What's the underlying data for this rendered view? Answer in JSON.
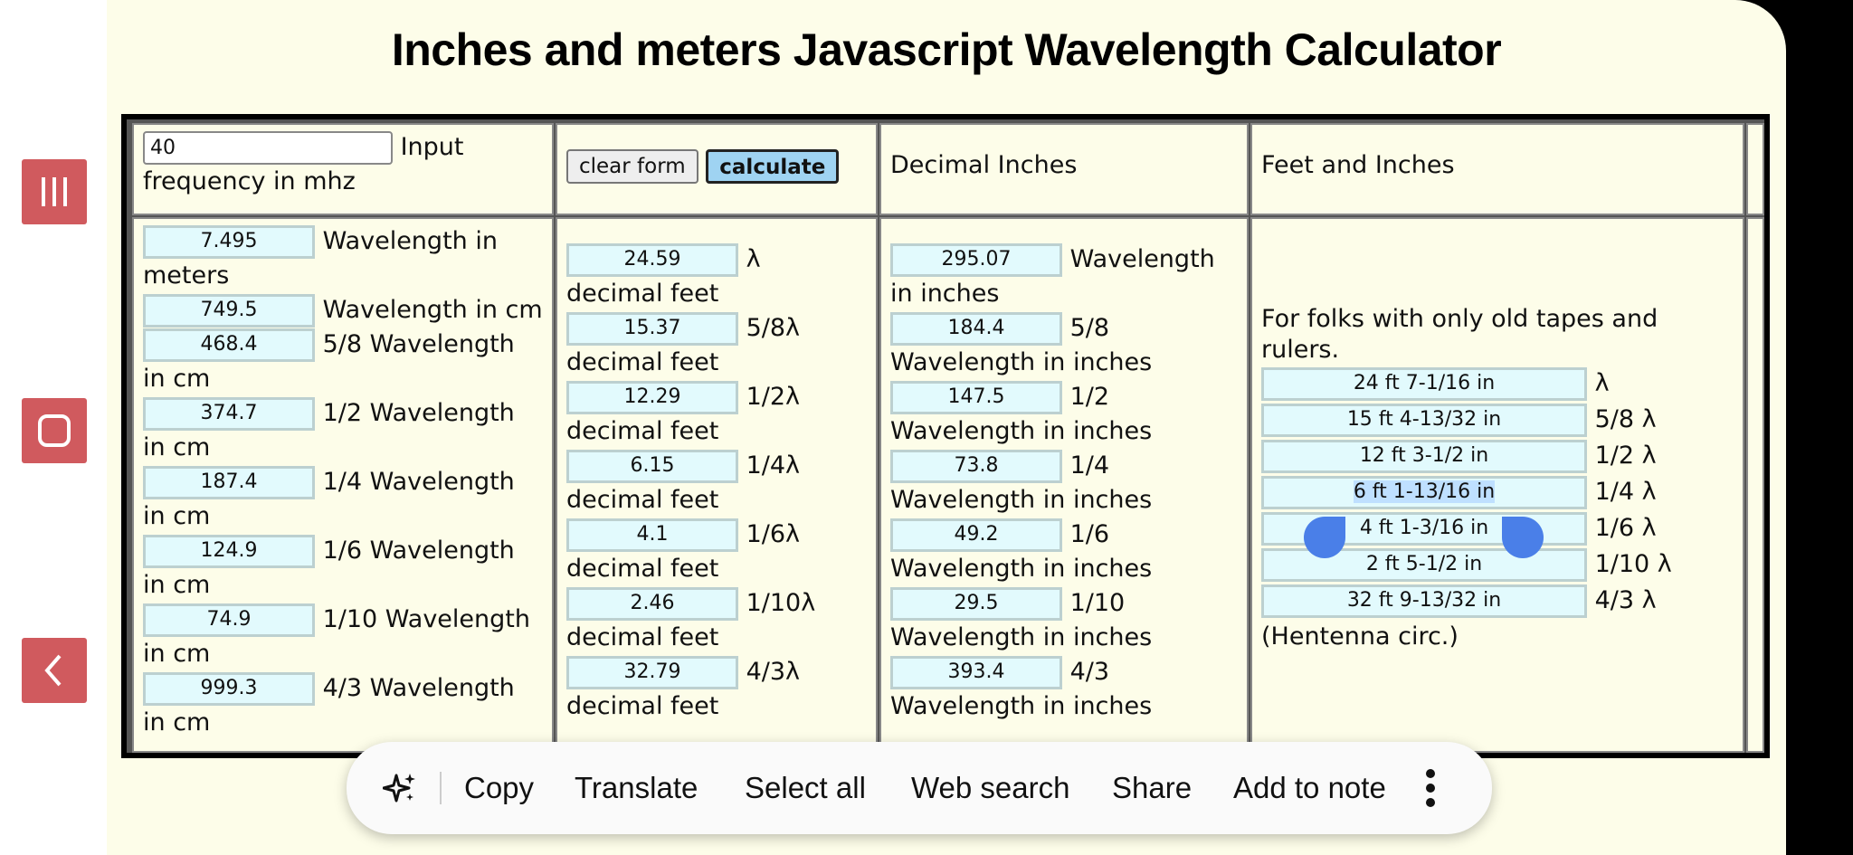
{
  "title": "Inches and meters Javascript Wavelength Calculator",
  "input": {
    "value": "40",
    "label_after": "Input",
    "label_below": "frequency in mhz"
  },
  "buttons": {
    "clear": "clear form",
    "calculate": "calculate"
  },
  "headers": {
    "decimal_inches": "Decimal Inches",
    "feet_inches": "Feet and Inches"
  },
  "col_cm": {
    "wavelength_m_value": "7.495",
    "wavelength_m_label1": "Wavelength in",
    "wavelength_m_label2": "meters",
    "wavelength_cm_value": "749.5",
    "wavelength_cm_label": "Wavelength in cm",
    "rows": [
      {
        "value": "468.4",
        "label": "5/8 Wavelength",
        "label2": "in cm"
      },
      {
        "value": "374.7",
        "label": "1/2 Wavelength",
        "label2": "in cm"
      },
      {
        "value": "187.4",
        "label": "1/4 Wavelength",
        "label2": "in cm"
      },
      {
        "value": "124.9",
        "label": "1/6 Wavelength",
        "label2": "in cm"
      },
      {
        "value": "74.9",
        "label": "1/10 Wavelength",
        "label2": "in cm"
      },
      {
        "value": "999.3",
        "label": "4/3 Wavelength",
        "label2": "in cm"
      }
    ]
  },
  "col_feet": {
    "rows": [
      {
        "value": "24.59",
        "label": "λ",
        "label2": "decimal feet"
      },
      {
        "value": "15.37",
        "label": "5/8λ",
        "label2": "decimal feet"
      },
      {
        "value": "12.29",
        "label": "1/2λ",
        "label2": "decimal feet"
      },
      {
        "value": "6.15",
        "label": "1/4λ",
        "label2": "decimal feet"
      },
      {
        "value": "4.1",
        "label": "1/6λ",
        "label2": "decimal feet"
      },
      {
        "value": "2.46",
        "label": "1/10λ",
        "label2": "decimal feet"
      },
      {
        "value": "32.79",
        "label": "4/3λ",
        "label2": "decimal feet"
      }
    ]
  },
  "col_inches": {
    "rows": [
      {
        "value": "295.07",
        "label": "Wavelength",
        "label2": "in inches"
      },
      {
        "value": "184.4",
        "label": "5/8",
        "label2": "Wavelength in inches"
      },
      {
        "value": "147.5",
        "label": "1/2",
        "label2": "Wavelength in inches"
      },
      {
        "value": "73.8",
        "label": "1/4",
        "label2": "Wavelength in inches"
      },
      {
        "value": "49.2",
        "label": "1/6",
        "label2": "Wavelength in inches"
      },
      {
        "value": "29.5",
        "label": "1/10",
        "label2": "Wavelength in inches"
      },
      {
        "value": "393.4",
        "label": "4/3",
        "label2": "Wavelength in inches"
      }
    ]
  },
  "col_ft_in": {
    "intro1": "For folks with only old tapes and",
    "intro2": "rulers.",
    "rows": [
      {
        "value": "24 ft 7-1/16 in",
        "label": "λ"
      },
      {
        "value": "15 ft 4-13/32 in",
        "label": "5/8 λ"
      },
      {
        "value": "12 ft 3-1/2 in",
        "label": "1/2 λ"
      },
      {
        "value": "6 ft 1-13/16 in",
        "label": "1/4 λ"
      },
      {
        "value": "4 ft 1-3/16 in",
        "label": "1/6 λ"
      },
      {
        "value": "2 ft 5-1/2 in",
        "label": "1/10 λ"
      },
      {
        "value": "32 ft 9-13/32 in",
        "label": "4/3 λ"
      }
    ],
    "footer": "(Hentenna circ.)"
  },
  "toolbar": {
    "copy": "Copy",
    "translate": "Translate",
    "select_all": "Select all",
    "web_search": "Web search",
    "share": "Share",
    "add_to_note": "Add to note"
  },
  "icons": [
    "recent-apps-icon",
    "home-icon",
    "back-icon",
    "sparkle-icon",
    "more-vert-icon"
  ],
  "colors": {
    "nav_button": "#d05a5e",
    "page_bg": "#fdfde9",
    "input_bg": "#e2fafd",
    "calculate_bg": "#9fd3f2",
    "selection_handle": "#4a7fe8"
  }
}
